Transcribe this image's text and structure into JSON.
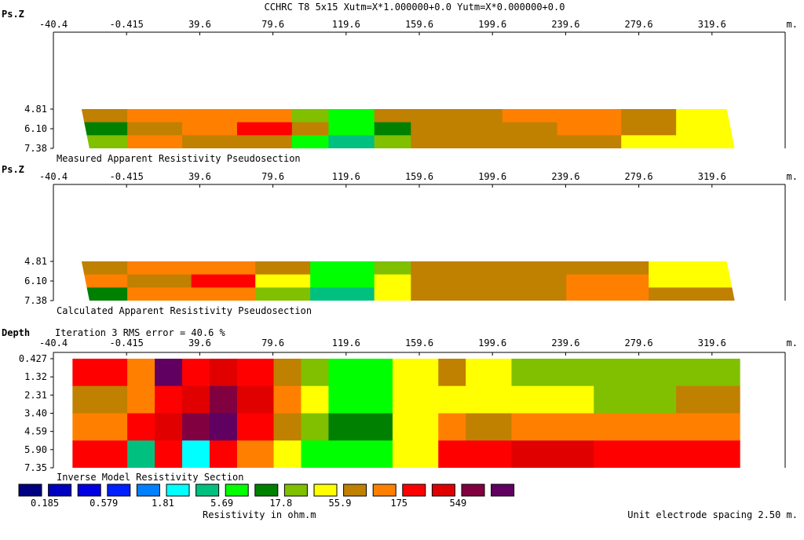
{
  "header": {
    "title": "CCHRC T8 5x15  Xutm=X*1.000000+0.0 Yutm=X*0.000000+0.0",
    "distance_unit": "m."
  },
  "colors": [
    "#000080",
    "#0000c0",
    "#0000e0",
    "#0020ff",
    "#0080ff",
    "#00ffff",
    "#00c080",
    "#00ff00",
    "#008000",
    "#80c000",
    "#ffff00",
    "#c08000",
    "#ff8000",
    "#ff0000",
    "#e00000",
    "#800040",
    "#600060"
  ],
  "chart_data": [
    {
      "type": "heatmap",
      "title": "Measured Apparent Resistivity Pseudosection",
      "ylabel": "Ps.Z",
      "xlabel": "m.",
      "x_ticks": [
        "-40.4",
        "-0.415",
        "39.6",
        "79.6",
        "119.6",
        "159.6",
        "199.6",
        "239.6",
        "279.6",
        "319.6"
      ],
      "xlim": [
        -40.4,
        359.6
      ],
      "y_ticks": [
        "4.81",
        "6.10",
        "7.38"
      ],
      "ylim": [
        4.81,
        7.38
      ],
      "data_extent_x": [
        -25.0,
        332.0
      ],
      "columns": [
        {
          "from": -25,
          "to": 0,
          "colors": [
            "#c08000",
            "#008000",
            "#80c000"
          ]
        },
        {
          "from": 0,
          "to": 30,
          "colors": [
            "#ff8000",
            "#c08000",
            "#ff8000"
          ]
        },
        {
          "from": 30,
          "to": 60,
          "colors": [
            "#ff8000",
            "#ff8000",
            "#c08000"
          ]
        },
        {
          "from": 60,
          "to": 90,
          "colors": [
            "#ff8000",
            "#ff0000",
            "#c08000"
          ]
        },
        {
          "from": 90,
          "to": 110,
          "colors": [
            "#80c000",
            "#c08000",
            "#00ff00"
          ]
        },
        {
          "from": 110,
          "to": 135,
          "colors": [
            "#00ff00",
            "#00ff00",
            "#00c080"
          ]
        },
        {
          "from": 135,
          "to": 155,
          "colors": [
            "#c08000",
            "#008000",
            "#80c000"
          ]
        },
        {
          "from": 155,
          "to": 205,
          "colors": [
            "#c08000",
            "#c08000",
            "#c08000"
          ]
        },
        {
          "from": 205,
          "to": 235,
          "colors": [
            "#ff8000",
            "#c08000",
            "#c08000"
          ]
        },
        {
          "from": 235,
          "to": 270,
          "colors": [
            "#ff8000",
            "#ff8000",
            "#c08000"
          ]
        },
        {
          "from": 270,
          "to": 300,
          "colors": [
            "#c08000",
            "#c08000",
            "#ffff00"
          ]
        },
        {
          "from": 300,
          "to": 332,
          "colors": [
            "#ffff00",
            "#ffff00",
            "#ffff00"
          ]
        }
      ]
    },
    {
      "type": "heatmap",
      "title": "Calculated Apparent Resistivity Pseudosection",
      "ylabel": "Ps.Z",
      "xlabel": "m.",
      "x_ticks": [
        "-40.4",
        "-0.415",
        "39.6",
        "79.6",
        "119.6",
        "159.6",
        "199.6",
        "239.6",
        "279.6",
        "319.6"
      ],
      "xlim": [
        -40.4,
        359.6
      ],
      "y_ticks": [
        "4.81",
        "6.10",
        "7.38"
      ],
      "ylim": [
        4.81,
        7.38
      ],
      "data_extent_x": [
        -25.0,
        332.0
      ],
      "columns": [
        {
          "from": -25,
          "to": 0,
          "colors": [
            "#c08000",
            "#ff8000",
            "#008000"
          ]
        },
        {
          "from": 0,
          "to": 35,
          "colors": [
            "#ff8000",
            "#c08000",
            "#ff8000"
          ]
        },
        {
          "from": 35,
          "to": 70,
          "colors": [
            "#ff8000",
            "#ff0000",
            "#ff8000"
          ]
        },
        {
          "from": 70,
          "to": 100,
          "colors": [
            "#c08000",
            "#ffff00",
            "#80c000"
          ]
        },
        {
          "from": 100,
          "to": 135,
          "colors": [
            "#00ff00",
            "#00ff00",
            "#00c080"
          ]
        },
        {
          "from": 135,
          "to": 155,
          "colors": [
            "#80c000",
            "#ffff00",
            "#ffff00"
          ]
        },
        {
          "from": 155,
          "to": 240,
          "colors": [
            "#c08000",
            "#c08000",
            "#c08000"
          ]
        },
        {
          "from": 240,
          "to": 285,
          "colors": [
            "#c08000",
            "#ff8000",
            "#ff8000"
          ]
        },
        {
          "from": 285,
          "to": 332,
          "colors": [
            "#ffff00",
            "#ffff00",
            "#c08000"
          ]
        }
      ]
    },
    {
      "type": "heatmap",
      "title": "Inverse Model Resistivity Section",
      "subtitle": "Iteration 3 RMS error = 40.6 %",
      "ylabel": "Depth",
      "xlabel": "m.",
      "x_ticks": [
        "-40.4",
        "-0.415",
        "39.6",
        "79.6",
        "119.6",
        "159.6",
        "199.6",
        "239.6",
        "279.6",
        "319.6"
      ],
      "xlim": [
        -40.4,
        359.6
      ],
      "y_ticks": [
        "0.427",
        "1.32",
        "2.31",
        "3.40",
        "4.59",
        "5.90",
        "7.35"
      ],
      "ylim": [
        0.427,
        7.35
      ],
      "data_extent_x": [
        -30.0,
        335.0
      ],
      "columns": [
        {
          "from": -30,
          "to": 0,
          "colors": [
            "#ff0000",
            "#c08000",
            "#ff8000",
            "#ff0000"
          ]
        },
        {
          "from": 0,
          "to": 15,
          "colors": [
            "#ff8000",
            "#ff8000",
            "#ff0000",
            "#00c080"
          ]
        },
        {
          "from": 15,
          "to": 30,
          "colors": [
            "#600060",
            "#ff0000",
            "#e00000",
            "#ff0000"
          ]
        },
        {
          "from": 30,
          "to": 45,
          "colors": [
            "#ff0000",
            "#e00000",
            "#800040",
            "#00ffff"
          ]
        },
        {
          "from": 45,
          "to": 60,
          "colors": [
            "#e00000",
            "#800040",
            "#600060",
            "#ff0000"
          ]
        },
        {
          "from": 60,
          "to": 80,
          "colors": [
            "#ff0000",
            "#e00000",
            "#ff0000",
            "#ff8000"
          ]
        },
        {
          "from": 80,
          "to": 95,
          "colors": [
            "#c08000",
            "#ff8000",
            "#c08000",
            "#ffff00"
          ]
        },
        {
          "from": 95,
          "to": 110,
          "colors": [
            "#80c000",
            "#ffff00",
            "#80c000",
            "#00ff00"
          ]
        },
        {
          "from": 110,
          "to": 145,
          "colors": [
            "#00ff00",
            "#00ff00",
            "#008000",
            "#00ff00"
          ]
        },
        {
          "from": 145,
          "to": 170,
          "colors": [
            "#ffff00",
            "#ffff00",
            "#ffff00",
            "#ffff00"
          ]
        },
        {
          "from": 170,
          "to": 185,
          "colors": [
            "#c08000",
            "#ffff00",
            "#ff8000",
            "#ff0000"
          ]
        },
        {
          "from": 185,
          "to": 210,
          "colors": [
            "#ffff00",
            "#ffff00",
            "#c08000",
            "#ff0000"
          ]
        },
        {
          "from": 210,
          "to": 255,
          "colors": [
            "#80c000",
            "#ffff00",
            "#ff8000",
            "#e00000"
          ]
        },
        {
          "from": 255,
          "to": 300,
          "colors": [
            "#80c000",
            "#80c000",
            "#ff8000",
            "#ff0000"
          ]
        },
        {
          "from": 300,
          "to": 335,
          "colors": [
            "#80c000",
            "#c08000",
            "#ff8000",
            "#ff0000"
          ]
        }
      ]
    }
  ],
  "legend": {
    "value_labels": [
      {
        "index": 0,
        "label": "0.185"
      },
      {
        "index": 2,
        "label": "0.579"
      },
      {
        "index": 4,
        "label": "1.81"
      },
      {
        "index": 6,
        "label": "5.69"
      },
      {
        "index": 8,
        "label": "17.8"
      },
      {
        "index": 10,
        "label": "55.9"
      },
      {
        "index": 12,
        "label": "175"
      },
      {
        "index": 14,
        "label": "549"
      }
    ],
    "caption": "Resistivity in ohm.m"
  },
  "footer": {
    "spacing_note": "Unit electrode spacing 2.50 m."
  }
}
